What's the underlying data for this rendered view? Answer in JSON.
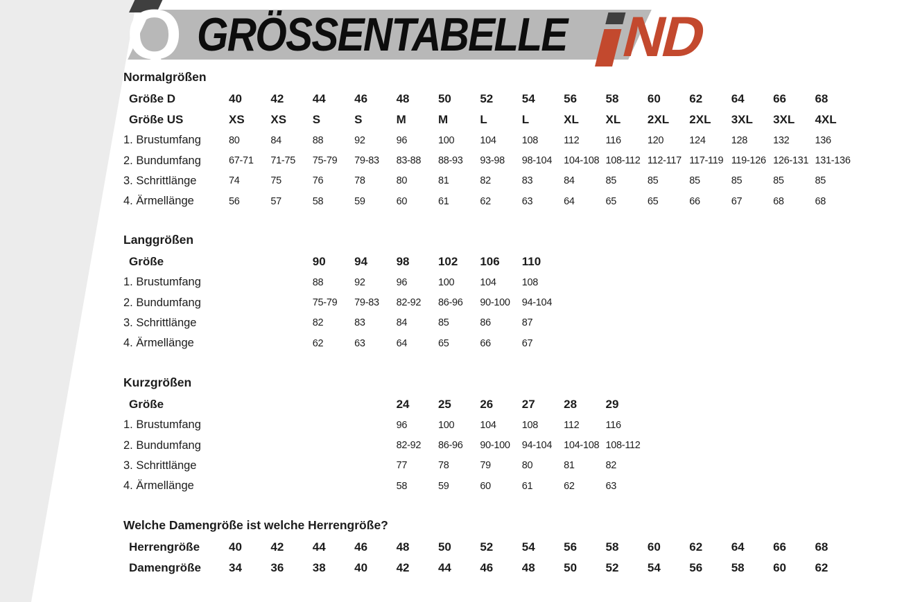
{
  "header": {
    "q_logo": "Q",
    "title": "GRÖSSENTABELLE",
    "brand": "IND",
    "brand_nd": "ND",
    "colors": {
      "banner_gray": "#b8b8b8",
      "brand_red": "#c3492e",
      "dark": "#3f3f3f",
      "side_gray": "#ececec",
      "text": "#1c1c1c"
    }
  },
  "layout": {
    "columns": 15,
    "offsets": {
      "normal": 0,
      "lang": 2,
      "kurz": 4,
      "conversion": 0
    }
  },
  "tables": {
    "normal": {
      "title": "Normalgrößen",
      "size_rows": [
        {
          "label": "Größe D",
          "values": [
            "40",
            "42",
            "44",
            "46",
            "48",
            "50",
            "52",
            "54",
            "56",
            "58",
            "60",
            "62",
            "64",
            "66",
            "68"
          ]
        },
        {
          "label": "Größe US",
          "values": [
            "XS",
            "XS",
            "S",
            "S",
            "M",
            "M",
            "L",
            "L",
            "XL",
            "XL",
            "2XL",
            "2XL",
            "3XL",
            "3XL",
            "4XL"
          ]
        }
      ],
      "measure_rows": [
        {
          "label": "1. Brustumfang",
          "values": [
            "80",
            "84",
            "88",
            "92",
            "96",
            "100",
            "104",
            "108",
            "112",
            "116",
            "120",
            "124",
            "128",
            "132",
            "136"
          ]
        },
        {
          "label": "2. Bundumfang",
          "values": [
            "67-71",
            "71-75",
            "75-79",
            "79-83",
            "83-88",
            "88-93",
            "93-98",
            "98-104",
            "104-108",
            "108-112",
            "112-117",
            "117-119",
            "119-126",
            "126-131",
            "131-136"
          ]
        },
        {
          "label": "3. Schrittlänge",
          "values": [
            "74",
            "75",
            "76",
            "78",
            "80",
            "81",
            "82",
            "83",
            "84",
            "85",
            "85",
            "85",
            "85",
            "85",
            "85"
          ]
        },
        {
          "label": "4. Ärmellänge",
          "values": [
            "56",
            "57",
            "58",
            "59",
            "60",
            "61",
            "62",
            "63",
            "64",
            "65",
            "65",
            "66",
            "67",
            "68",
            "68"
          ]
        }
      ]
    },
    "lang": {
      "title": "Langgrößen",
      "size_rows": [
        {
          "label": "Größe",
          "values": [
            "90",
            "94",
            "98",
            "102",
            "106",
            "110"
          ]
        }
      ],
      "measure_rows": [
        {
          "label": "1. Brustumfang",
          "values": [
            "88",
            "92",
            "96",
            "100",
            "104",
            "108"
          ]
        },
        {
          "label": "2. Bundumfang",
          "values": [
            "75-79",
            "79-83",
            "82-92",
            "86-96",
            "90-100",
            "94-104"
          ]
        },
        {
          "label": "3. Schrittlänge",
          "values": [
            "82",
            "83",
            "84",
            "85",
            "86",
            "87"
          ]
        },
        {
          "label": "4. Ärmellänge",
          "values": [
            "62",
            "63",
            "64",
            "65",
            "66",
            "67"
          ]
        }
      ]
    },
    "kurz": {
      "title": "Kurzgrößen",
      "size_rows": [
        {
          "label": "Größe",
          "values": [
            "24",
            "25",
            "26",
            "27",
            "28",
            "29"
          ]
        }
      ],
      "measure_rows": [
        {
          "label": "1. Brustumfang",
          "values": [
            "96",
            "100",
            "104",
            "108",
            "112",
            "116"
          ]
        },
        {
          "label": "2. Bundumfang",
          "values": [
            "82-92",
            "86-96",
            "90-100",
            "94-104",
            "104-108",
            "108-112"
          ]
        },
        {
          "label": "3. Schrittlänge",
          "values": [
            "77",
            "78",
            "79",
            "80",
            "81",
            "82"
          ]
        },
        {
          "label": "4. Ärmellänge",
          "values": [
            "58",
            "59",
            "60",
            "61",
            "62",
            "63"
          ]
        }
      ]
    },
    "conversion": {
      "title": "Welche Damengröße ist welche Herrengröße?",
      "size_rows": [
        {
          "label": "Herrengröße",
          "values": [
            "40",
            "42",
            "44",
            "46",
            "48",
            "50",
            "52",
            "54",
            "56",
            "58",
            "60",
            "62",
            "64",
            "66",
            "68"
          ]
        },
        {
          "label": "Damengröße",
          "values": [
            "34",
            "36",
            "38",
            "40",
            "42",
            "44",
            "46",
            "48",
            "50",
            "52",
            "54",
            "56",
            "58",
            "60",
            "62"
          ]
        }
      ],
      "measure_rows": []
    }
  }
}
